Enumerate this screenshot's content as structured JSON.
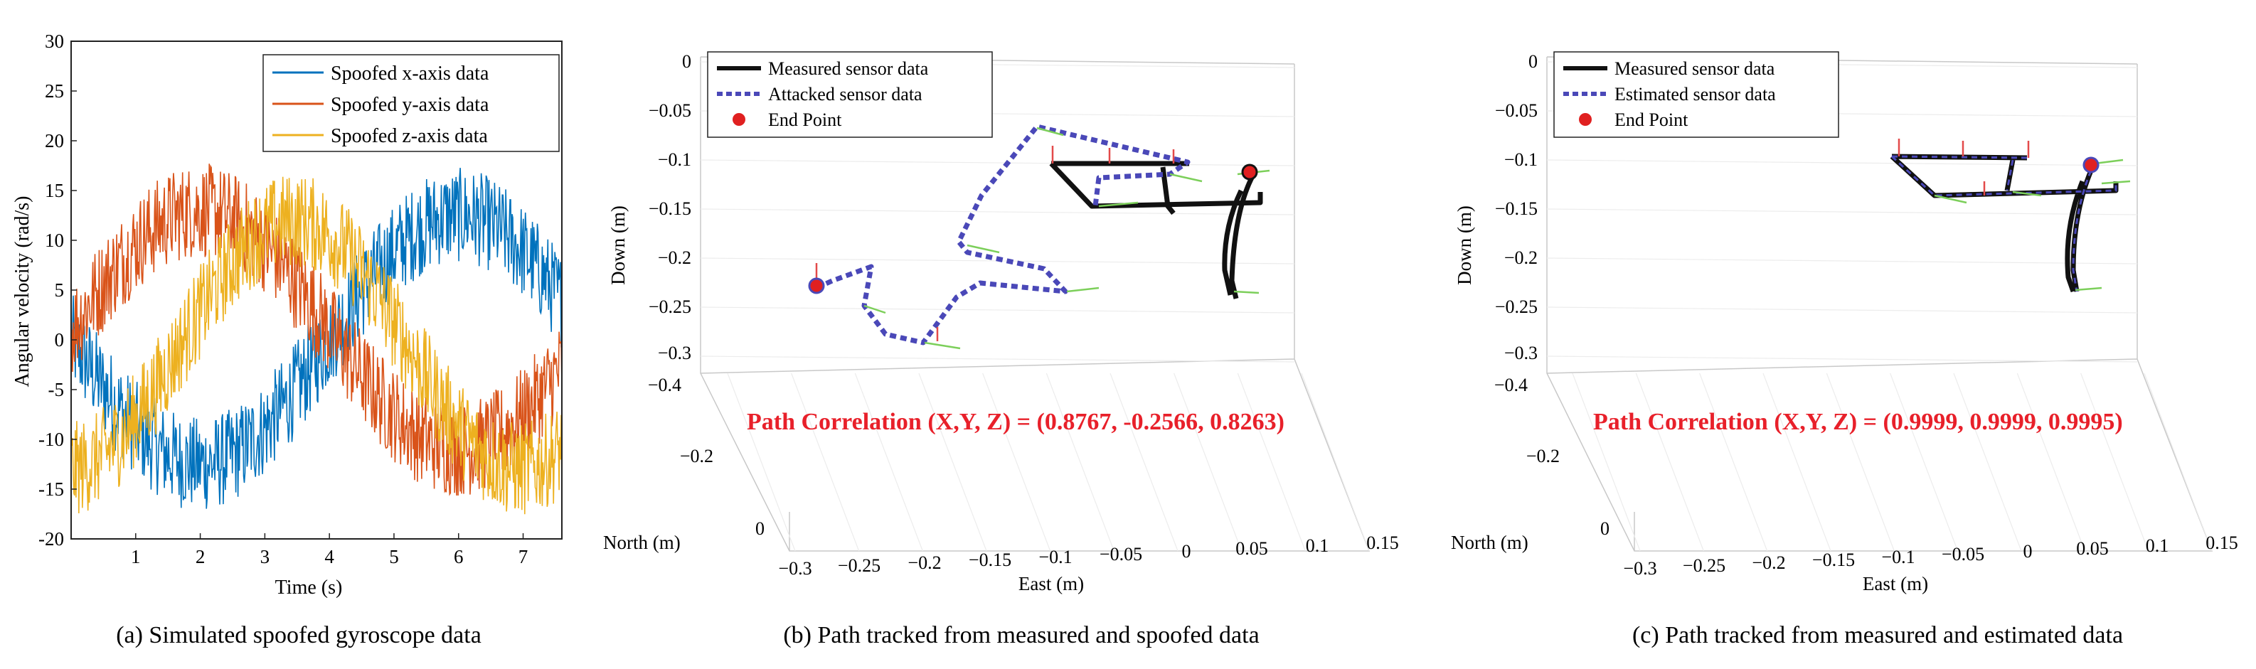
{
  "chart_data": [
    {
      "type": "line",
      "title": "",
      "xlabel": "Time (s)",
      "ylabel": "Angular velocity (rad/s)",
      "xlim": [
        0,
        7.6
      ],
      "ylim": [
        -20,
        30
      ],
      "xticks": [
        1,
        2,
        3,
        4,
        5,
        6,
        7
      ],
      "yticks": [
        -20,
        -15,
        -10,
        -5,
        0,
        5,
        10,
        15,
        20,
        25,
        30
      ],
      "series": [
        {
          "name": "Spoofed x-axis data",
          "color": "#0072bd",
          "amplitude": 12.5,
          "period_s": 8.0,
          "phase": "sin(t - 2)",
          "noise": 3.0
        },
        {
          "name": "Spoofed y-axis data",
          "color": "#d95319",
          "amplitude": 12.0,
          "period_s": 8.0,
          "phase": "sin(t)",
          "noise": 3.0
        },
        {
          "name": "Spoofed z-axis data",
          "color": "#edb120",
          "amplitude": 12.5,
          "period_s": 7.0,
          "phase": "sin(t - 1.7)",
          "noise": 3.0
        }
      ],
      "caption": "(a) Simulated spoofed gyroscope data"
    },
    {
      "type": "line3d",
      "xlabel": "East (m)",
      "ylabel": "North (m)",
      "zlabel": "Down (m)",
      "east_ticks": [
        "−0.3",
        "−0.25",
        "−0.2",
        "−0.15",
        "−0.1",
        "−0.05",
        "0",
        "0.05",
        "0.1",
        "0.15"
      ],
      "north_ticks": [
        "0",
        "−0.2",
        "−0.4"
      ],
      "down_ticks": [
        "0",
        "−0.05",
        "−0.1",
        "−0.15",
        "−0.2",
        "−0.25",
        "−0.3"
      ],
      "legend": [
        "Measured sensor data",
        "Attacked sensor data",
        "End Point"
      ],
      "annotation": "Path Correlation (X,Y, Z) = (0.8767, -0.2566, 0.8263)",
      "caption": "(b) Path tracked from measured and spoofed data"
    },
    {
      "type": "line3d",
      "xlabel": "East (m)",
      "ylabel": "North (m)",
      "zlabel": "Down (m)",
      "east_ticks": [
        "−0.3",
        "−0.25",
        "−0.2",
        "−0.15",
        "−0.1",
        "−0.05",
        "0",
        "0.05",
        "0.1",
        "0.15"
      ],
      "north_ticks": [
        "0",
        "−0.2",
        "−0.4"
      ],
      "down_ticks": [
        "0",
        "−0.05",
        "−0.1",
        "−0.15",
        "−0.2",
        "−0.25",
        "−0.3"
      ],
      "legend": [
        "Measured sensor data",
        "Estimated sensor data",
        "End Point"
      ],
      "annotation": "Path Correlation (X,Y, Z) = (0.9999, 0.9999, 0.9995)",
      "caption": "(c) Path tracked from measured and estimated data"
    }
  ]
}
